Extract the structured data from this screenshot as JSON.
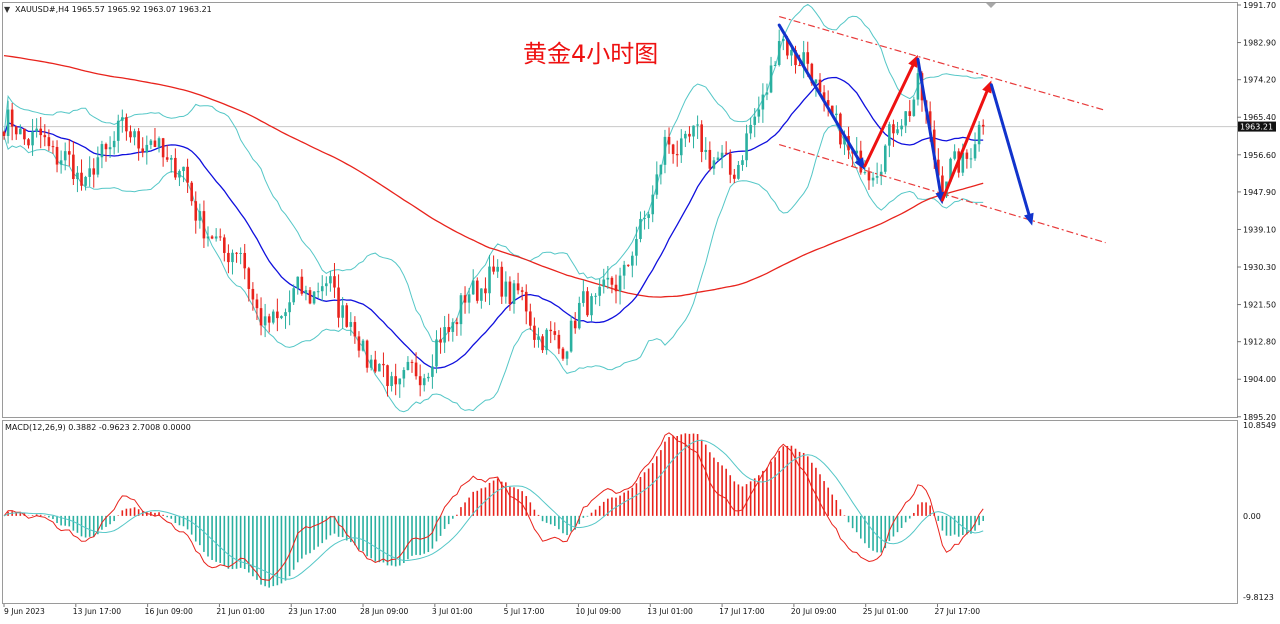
{
  "header": {
    "menu_glyph": "▼",
    "symbol_info": "XAUUSD#,H4  1965.57 1965.92 1963.07 1963.21"
  },
  "annotation": {
    "title": "黄金4小时图",
    "color": "#ee1111"
  },
  "colors": {
    "bull": "#2ab0a0",
    "bear": "#e8231c",
    "ma_fast": "#1010dd",
    "ma_slow": "#e8231c",
    "bollinger": "#55c7c7",
    "arrow_up": "#ee1111",
    "arrow_down": "#1133cc",
    "channel": "#e83a3a",
    "macd_line": "#e8231c",
    "signal_line": "#55c7c7"
  },
  "chart_data": [
    {
      "type": "candlestick",
      "symbol": "XAUUSD#",
      "timeframe": "H4",
      "last_price": 1963.21,
      "last_price_label": "1963.21",
      "ylim": [
        1890.0,
        1993.0
      ],
      "y_ticks": [
        1991.7,
        1982.9,
        1974.2,
        1965.4,
        1956.6,
        1947.9,
        1939.1,
        1930.3,
        1921.5,
        1912.8,
        1904.0,
        1895.2
      ],
      "y_tick_labels": [
        "1991.70",
        "1982.90",
        "1974.20",
        "1965.40",
        "1956.60",
        "1947.90",
        "1939.10",
        "1930.30",
        "1921.50",
        "1912.80",
        "1904.00",
        "1895.20"
      ],
      "x_labels": [
        "9 Jun 2023",
        "13 Jun 17:00",
        "16 Jun 09:00",
        "21 Jun 01:00",
        "23 Jun 17:00",
        "28 Jun 09:00",
        "3 Jul 01:00",
        "5 Jul 17:00",
        "10 Jul 09:00",
        "13 Jul 01:00",
        "17 Jul 17:00",
        "20 Jul 09:00",
        "25 Jul 01:00",
        "27 Jul 17:00"
      ],
      "waypoints": [
        [
          0,
          1964
        ],
        [
          6,
          1961
        ],
        [
          12,
          1958
        ],
        [
          20,
          1950
        ],
        [
          28,
          1962
        ],
        [
          35,
          1960
        ],
        [
          44,
          1952
        ],
        [
          50,
          1937
        ],
        [
          58,
          1933
        ],
        [
          64,
          1915
        ],
        [
          72,
          1924
        ],
        [
          80,
          1926
        ],
        [
          88,
          1911
        ],
        [
          96,
          1902
        ],
        [
          104,
          1908
        ],
        [
          112,
          1921
        ],
        [
          118,
          1928
        ],
        [
          126,
          1924
        ],
        [
          130,
          1916
        ],
        [
          136,
          1911
        ],
        [
          142,
          1921
        ],
        [
          150,
          1926
        ],
        [
          156,
          1938
        ],
        [
          162,
          1958
        ],
        [
          170,
          1960
        ],
        [
          178,
          1952
        ],
        [
          184,
          1964
        ],
        [
          190,
          1983
        ],
        [
          196,
          1979
        ],
        [
          204,
          1962
        ],
        [
          212,
          1952
        ],
        [
          218,
          1962
        ],
        [
          224,
          1972
        ],
        [
          230,
          1950
        ],
        [
          236,
          1957
        ],
        [
          240,
          1963
        ]
      ],
      "candle_count": 241,
      "series": [
        {
          "name": "MA fast",
          "values_ref": "smoothed close, period ~20"
        },
        {
          "name": "MA slow",
          "values_ref": "smoothed close, period ~120"
        }
      ],
      "channel_upper": [
        [
          190,
          1989
        ],
        [
          270,
          1967
        ]
      ],
      "channel_lower": [
        [
          190,
          1959
        ],
        [
          270,
          1936
        ]
      ],
      "arrows": [
        {
          "dir": "down",
          "from": [
            190,
            1987
          ],
          "to": [
            211,
            1953
          ]
        },
        {
          "dir": "up",
          "from": [
            211,
            1954
          ],
          "to": [
            224,
            1980
          ]
        },
        {
          "dir": "down",
          "from": [
            224,
            1979
          ],
          "to": [
            230,
            1945
          ]
        },
        {
          "dir": "up",
          "from": [
            230,
            1946
          ],
          "to": [
            242,
            1974
          ]
        },
        {
          "dir": "down",
          "from": [
            242,
            1973
          ],
          "to": [
            252,
            1940
          ]
        }
      ]
    },
    {
      "type": "histogram",
      "indicator_label": "MACD(12,26,9) 0.3882 -0.9623 2.7008 0.0000",
      "ylim": [
        -9.8123,
        10.8549
      ],
      "y_tick_labels": [
        "10.8549",
        "0.00",
        "-9.8123"
      ],
      "macd_params": [
        12,
        26,
        9
      ]
    }
  ]
}
